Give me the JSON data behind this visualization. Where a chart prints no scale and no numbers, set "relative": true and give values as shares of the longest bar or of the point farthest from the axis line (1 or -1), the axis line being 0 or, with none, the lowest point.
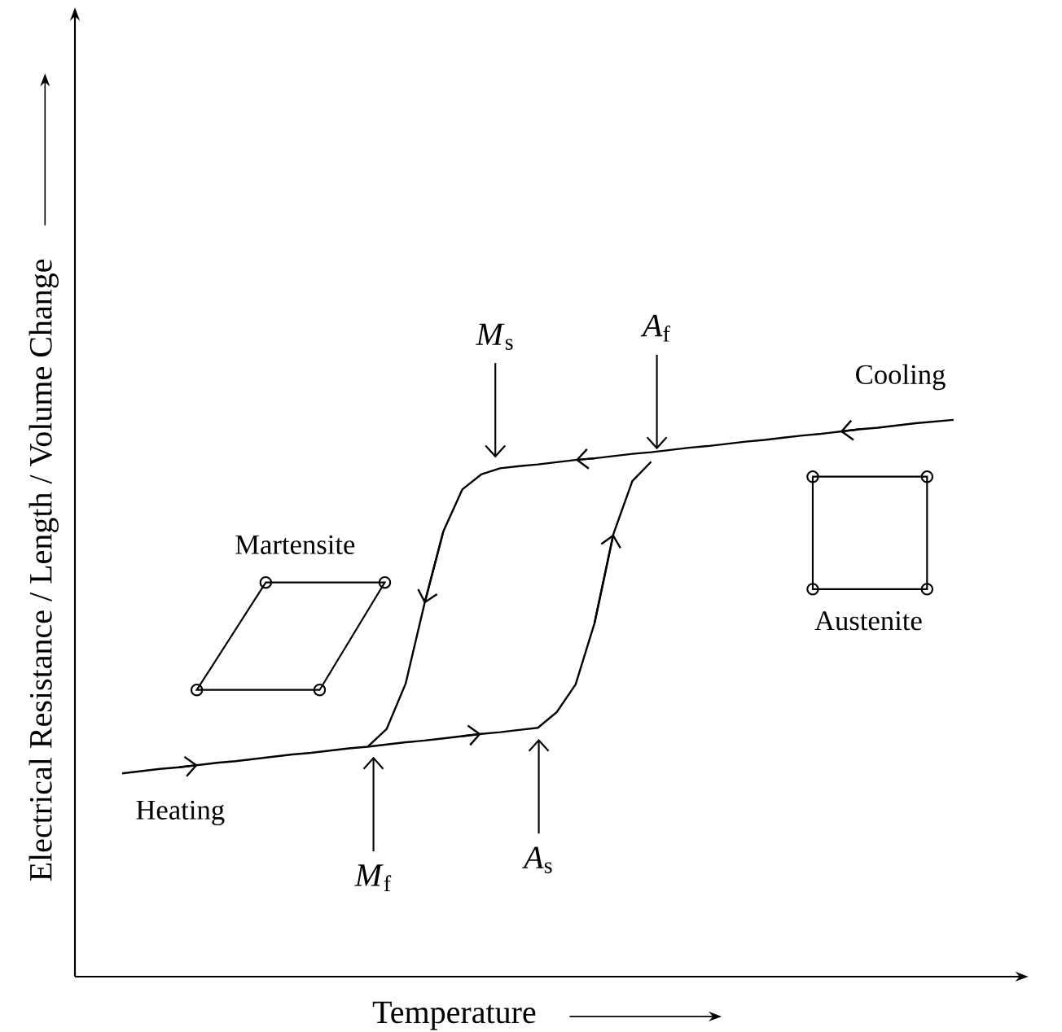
{
  "chart_data": {
    "type": "line",
    "relative": true,
    "xlabel": "Temperature",
    "ylabel": "Electrical Resistance / Length / Volume Change",
    "categories": [
      null,
      null,
      null,
      null,
      null,
      null,
      null,
      null,
      null,
      null,
      null,
      null,
      null,
      null,
      null,
      null,
      null,
      null,
      null,
      null,
      null,
      null,
      null,
      null,
      null,
      null,
      null,
      null,
      null,
      null,
      null,
      null,
      null,
      null,
      null,
      null,
      null,
      null,
      null,
      null,
      null,
      null,
      null,
      null,
      null
    ],
    "series": [
      {
        "color": "#000000",
        "values": [
          0.365,
          0.369,
          0.373,
          0.376,
          0.38,
          0.384,
          0.387,
          0.391,
          0.395,
          0.399,
          0.402,
          0.406,
          0.41,
          0.413,
          0.417,
          0.421,
          0.424,
          0.428,
          0.432,
          0.436,
          0.439,
          0.443,
          0.447,
          0.475,
          0.525,
          0.635,
          0.795,
          0.89,
          0.925,
          null,
          null,
          null,
          null,
          null,
          null,
          null,
          null,
          null,
          null,
          null,
          null,
          null,
          null,
          null,
          null
        ]
      },
      {
        "color": "#000000",
        "values": [
          null,
          null,
          null,
          null,
          null,
          null,
          null,
          null,
          null,
          null,
          null,
          null,
          null,
          0.413,
          0.445,
          0.526,
          0.67,
          0.8,
          0.875,
          0.902,
          0.913,
          0.917,
          0.92,
          0.924,
          0.928,
          0.931,
          0.935,
          0.939,
          0.942,
          0.946,
          0.95,
          0.953,
          0.957,
          0.961,
          0.964,
          0.968,
          0.972,
          0.975,
          0.979,
          0.983,
          0.986,
          0.99,
          0.994,
          0.997,
          1.0
        ]
      }
    ],
    "annotations": [
      "*M*$_{s}$",
      "*M*$_{f}$",
      "*A*$_{s}$",
      "*A*$_{f}$",
      "Heating",
      "Cooling",
      "Martensite",
      "Austenite"
    ]
  }
}
